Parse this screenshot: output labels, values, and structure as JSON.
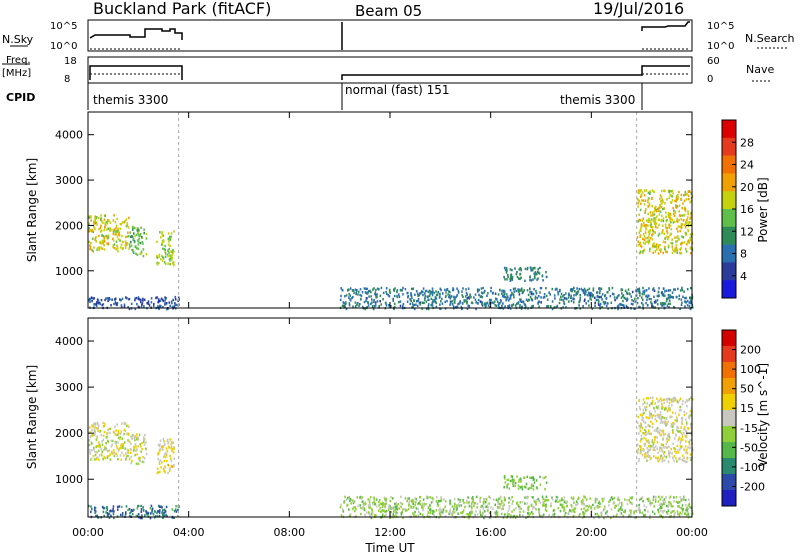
{
  "header": {
    "site": "Buckland Park (fitACF)",
    "beam": "Beam 05",
    "date": "19/Jul/2016"
  },
  "top_panels": {
    "nsky": {
      "label": "N.Sky",
      "right_label": "N.Search",
      "left_ticks": [
        "10^5",
        "10^0"
      ],
      "right_ticks": [
        "10^5",
        "10^0"
      ]
    },
    "freq": {
      "label_line1": "Freq.",
      "label_line2": "[MHz]",
      "right_label": "Nave",
      "left_ticks": [
        "18",
        "8"
      ],
      "right_ticks": [
        "60",
        "0"
      ]
    },
    "cpid": {
      "label": "CPID",
      "modes": [
        {
          "text": "themis 3300",
          "start_hour": 0.0
        },
        {
          "text": "normal (fast) 151",
          "start_hour": 10.0
        },
        {
          "text": "themis 3300",
          "start_hour": 22.0
        }
      ]
    }
  },
  "axes": {
    "x_label": "Time UT",
    "x_ticks": [
      "00:00",
      "04:00",
      "08:00",
      "12:00",
      "16:00",
      "20:00",
      "00:00"
    ],
    "y_label": "Slant Range [km]",
    "y_ticks": [
      "1000",
      "2000",
      "3000",
      "4000"
    ]
  },
  "colorbars": {
    "power": {
      "label": "Power [dB]",
      "ticks": [
        "4",
        "8",
        "12",
        "16",
        "20",
        "24",
        "28"
      ],
      "colors": [
        "#1a1adc",
        "#2c3c9c",
        "#2a6fb0",
        "#2e8b57",
        "#5fbf4a",
        "#c4d10c",
        "#f0a000",
        "#f07000",
        "#e63a1f",
        "#dc0000"
      ]
    },
    "velocity": {
      "label": "Velocity [m s^-1]",
      "ticks": [
        "200",
        "100",
        "50",
        "15",
        "-15",
        "-50",
        "-100",
        "-200"
      ],
      "colors": [
        "#2020c0",
        "#2c4aa8",
        "#2a8a70",
        "#56b84a",
        "#8fd03a",
        "#c8c8c0",
        "#f0d000",
        "#f0a000",
        "#f07000",
        "#e63a1f",
        "#d40000"
      ]
    }
  },
  "chart_data": [
    {
      "type": "heatmap",
      "title": "Power",
      "xlabel": "Time UT",
      "ylabel": "Slant Range [km]",
      "xlim": [
        0,
        24
      ],
      "ylim": [
        180,
        4500
      ],
      "colorbar_label": "Power [dB]",
      "colorbar_range": [
        0,
        32
      ],
      "regions": [
        {
          "t": [
            0.0,
            3.6
          ],
          "r": [
            180,
            450
          ],
          "value": 6
        },
        {
          "t": [
            0.0,
            1.6
          ],
          "r": [
            1450,
            2250
          ],
          "value": 18
        },
        {
          "t": [
            1.6,
            2.3
          ],
          "r": [
            1350,
            2000
          ],
          "value": 14
        },
        {
          "t": [
            2.7,
            3.4
          ],
          "r": [
            1150,
            1900
          ],
          "value": 16
        },
        {
          "t": [
            10.0,
            24.0
          ],
          "r": [
            180,
            650
          ],
          "value": 9
        },
        {
          "t": [
            16.5,
            18.2
          ],
          "r": [
            800,
            1100
          ],
          "value": 10
        },
        {
          "t": [
            21.8,
            24.0
          ],
          "r": [
            1400,
            2800
          ],
          "value": 18
        }
      ]
    },
    {
      "type": "heatmap",
      "title": "Velocity",
      "xlabel": "Time UT",
      "ylabel": "Slant Range [km]",
      "xlim": [
        0,
        24
      ],
      "ylim": [
        180,
        4500
      ],
      "colorbar_label": "Velocity [m s^-1]",
      "colorbar_range": [
        -250,
        250
      ],
      "regions": [
        {
          "t": [
            0.0,
            3.6
          ],
          "r": [
            180,
            450
          ],
          "value": -150
        },
        {
          "t": [
            0.0,
            1.6
          ],
          "r": [
            1450,
            2250
          ],
          "value": 0
        },
        {
          "t": [
            1.6,
            2.3
          ],
          "r": [
            1350,
            2000
          ],
          "value": 0
        },
        {
          "t": [
            2.7,
            3.4
          ],
          "r": [
            1150,
            1900
          ],
          "value": 30
        },
        {
          "t": [
            10.0,
            24.0
          ],
          "r": [
            180,
            650
          ],
          "value": -40
        },
        {
          "t": [
            16.5,
            18.2
          ],
          "r": [
            800,
            1100
          ],
          "value": -60
        },
        {
          "t": [
            21.8,
            24.0
          ],
          "r": [
            1400,
            2800
          ],
          "value": 5
        }
      ]
    }
  ]
}
